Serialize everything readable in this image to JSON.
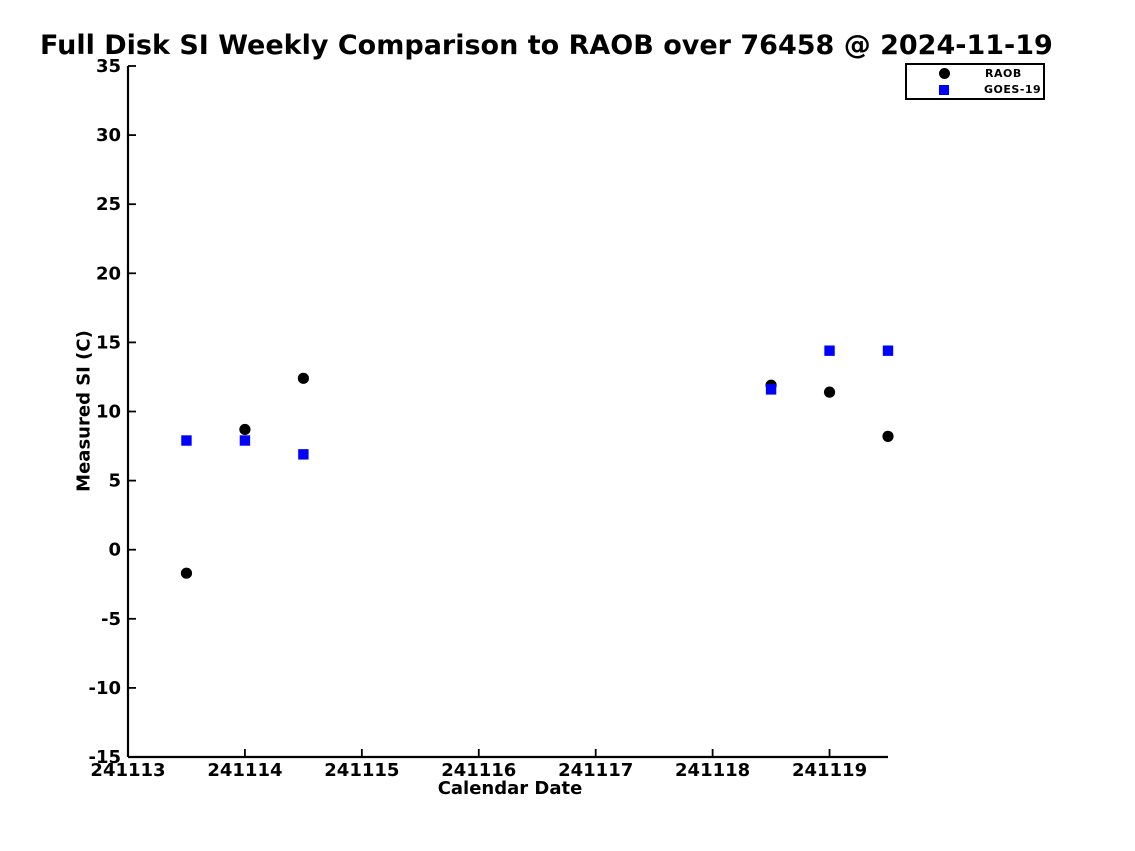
{
  "chart_data": {
    "type": "scatter",
    "title": "Full Disk SI Weekly Comparison to RAOB over 76458 @ 2024-11-19",
    "xlabel": "Calendar Date",
    "ylabel": "Measured SI (C)",
    "xlim": [
      241113,
      241119.5
    ],
    "ylim": [
      -15,
      35
    ],
    "xticks": [
      241113,
      241114,
      241115,
      241116,
      241117,
      241118,
      241119
    ],
    "yticks": [
      -15,
      -10,
      -5,
      0,
      5,
      10,
      15,
      20,
      25,
      30,
      35
    ],
    "grid": false,
    "legend_position": "top-right-outside",
    "series": [
      {
        "name": "RAOB",
        "marker": "circle",
        "color": "#000000",
        "points": [
          [
            241113.5,
            -1.7
          ],
          [
            241114.0,
            8.7
          ],
          [
            241114.5,
            12.4
          ],
          [
            241118.5,
            11.9
          ],
          [
            241119.0,
            11.4
          ],
          [
            241119.5,
            8.2
          ]
        ]
      },
      {
        "name": "GOES-19",
        "marker": "square",
        "color": "#0000ff",
        "points": [
          [
            241113.5,
            7.9
          ],
          [
            241114.0,
            7.9
          ],
          [
            241114.5,
            6.9
          ],
          [
            241118.5,
            11.6
          ],
          [
            241119.0,
            14.4
          ],
          [
            241119.5,
            14.4
          ]
        ]
      }
    ]
  }
}
